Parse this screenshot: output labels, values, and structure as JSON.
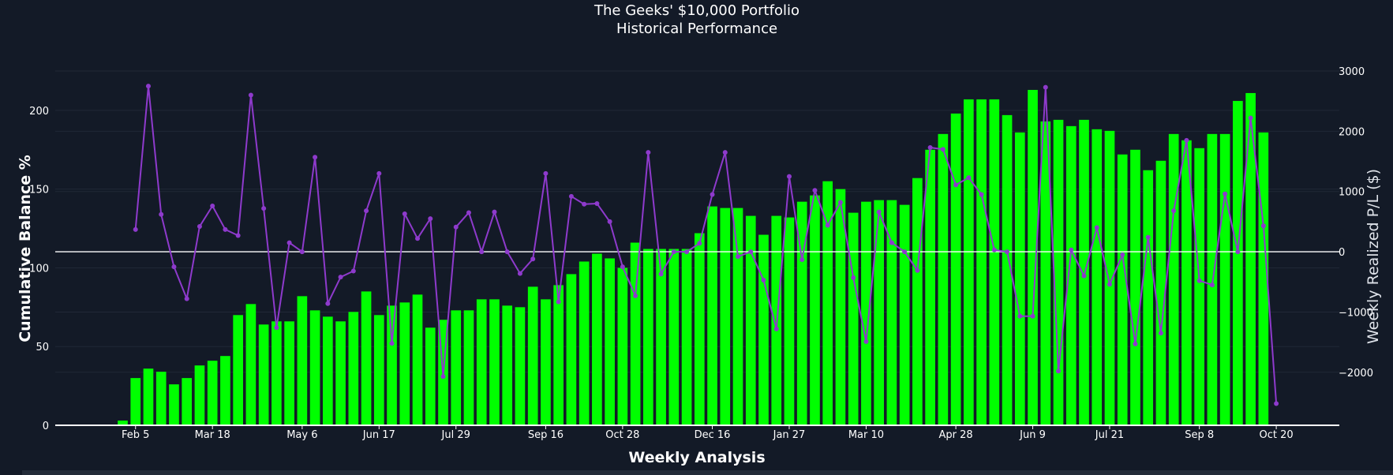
{
  "chart_data": {
    "type": "bar+line",
    "title": "The Geeks' $10,000 Portfolio",
    "subtitle": "Historical Performance",
    "xlabel": "Weekly Analysis",
    "ylabel": "Cumulative Balance %",
    "y2label": "Weekly Realized P/L ($)",
    "ylim": [
      0,
      225
    ],
    "y2lim": [
      -2880,
      3000
    ],
    "yticks": [
      0,
      50,
      100,
      150,
      200
    ],
    "y2ticks": [
      -2000,
      -1000,
      0,
      1000,
      2000,
      3000
    ],
    "y2tick_labels": [
      "−2000",
      "−1000",
      "0",
      "1000",
      "2000",
      "3000"
    ],
    "x_tick_labels": [
      "Feb 5",
      "Mar 18",
      "May 6",
      "Jun 17",
      "Jul 29",
      "Sep 16",
      "Oct 28",
      "Dec 16",
      "Jan 27",
      "Mar 10",
      "Apr 28",
      "Jun 9",
      "Jul 21",
      "Sep 8",
      "Oct 20"
    ],
    "x_tick_week_index": [
      1,
      7,
      14,
      20,
      26,
      33,
      39,
      46,
      52,
      58,
      65,
      71,
      77,
      84,
      90
    ],
    "colors": {
      "bars": "#00ff00",
      "line": "#8e3acc",
      "zero_line": "#ffffff",
      "grid": "#202836",
      "background": "#131a27"
    },
    "series": [
      {
        "name": "Cumulative Balance %",
        "axis": "left",
        "kind": "bar",
        "values": [
          3,
          30,
          36,
          34,
          26,
          30,
          38,
          41,
          44,
          70,
          77,
          64,
          66,
          66,
          82,
          73,
          69,
          66,
          72,
          85,
          70,
          76,
          78,
          83,
          62,
          67,
          73,
          73,
          80,
          80,
          76,
          75,
          88,
          80,
          89,
          96,
          104,
          109,
          106,
          100,
          116,
          112,
          112,
          112,
          112,
          122,
          139,
          138,
          138,
          133,
          121,
          133,
          132,
          142,
          146,
          155,
          150,
          135,
          142,
          143,
          143,
          140,
          157,
          175,
          185,
          198,
          207,
          207,
          207,
          197,
          186,
          213,
          193,
          194,
          190,
          194,
          188,
          187,
          172,
          175,
          162,
          168,
          185,
          181,
          176,
          185,
          185,
          206,
          211,
          186
        ]
      },
      {
        "name": "Weekly Realized P/L ($)",
        "axis": "right",
        "kind": "line",
        "start_week_index": 1,
        "values": [
          370,
          2750,
          620,
          -250,
          -780,
          420,
          760,
          370,
          270,
          2600,
          720,
          -1260,
          150,
          0,
          1570,
          -860,
          -420,
          -320,
          680,
          1300,
          -1520,
          630,
          220,
          550,
          -2070,
          410,
          650,
          0,
          660,
          0,
          -360,
          -120,
          1300,
          -830,
          920,
          790,
          800,
          500,
          -250,
          -730,
          1650,
          -370,
          0,
          0,
          140,
          950,
          1650,
          -80,
          0,
          -470,
          -1280,
          1250,
          -130,
          1020,
          440,
          820,
          -430,
          -1490,
          660,
          150,
          0,
          -310,
          1730,
          1700,
          1110,
          1230,
          950,
          30,
          0,
          -1070,
          -1070,
          2730,
          -1980,
          30,
          -400,
          400,
          -540,
          -50,
          -1530,
          240,
          -1350,
          680,
          1850,
          -480,
          -550,
          960,
          0,
          2220,
          430,
          -2520
        ]
      }
    ]
  }
}
